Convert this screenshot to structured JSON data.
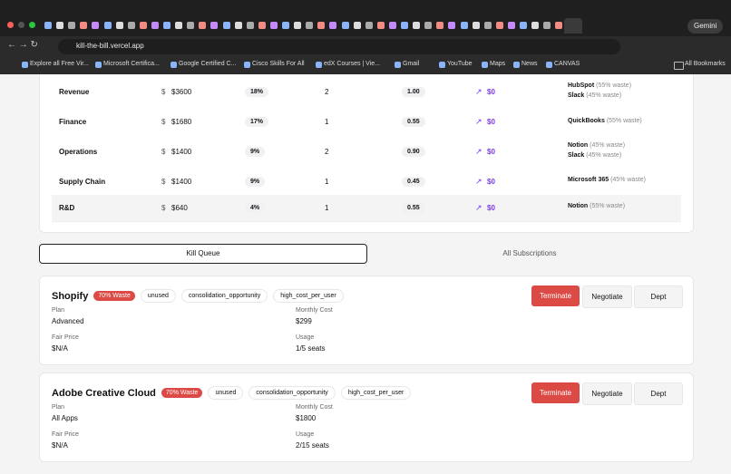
{
  "browser": {
    "url": "kill-the-bill.vercel.app",
    "gemini": "Gemini",
    "bookmarks": [
      "Explore all Free Vir...",
      "Microsoft Certifica...",
      "Google Certified C...",
      "Cisco Skills For All",
      "edX Courses | Vie...",
      "Gmail",
      "YouTube",
      "Maps",
      "News",
      "CANVAS"
    ],
    "all_bookmarks": "All Bookmarks"
  },
  "table": {
    "rows": [
      {
        "department": "Revenue",
        "currency": "$",
        "spend": "$3600",
        "share": "18%",
        "count": "2",
        "score": "1.00",
        "trend": "$0",
        "tools": [
          {
            "name": "HubSpot",
            "waste": "(55% waste)"
          },
          {
            "name": "Slack",
            "waste": "(45% waste)"
          }
        ]
      },
      {
        "department": "Finance",
        "currency": "$",
        "spend": "$1680",
        "share": "17%",
        "count": "1",
        "score": "0.55",
        "trend": "$0",
        "tools": [
          {
            "name": "QuickBooks",
            "waste": "(55% waste)"
          }
        ]
      },
      {
        "department": "Operations",
        "currency": "$",
        "spend": "$1400",
        "share": "9%",
        "count": "2",
        "score": "0.90",
        "trend": "$0",
        "tools": [
          {
            "name": "Notion",
            "waste": "(45% waste)"
          },
          {
            "name": "Slack",
            "waste": "(45% waste)"
          }
        ]
      },
      {
        "department": "Supply Chain",
        "currency": "$",
        "spend": "$1400",
        "share": "9%",
        "count": "1",
        "score": "0.45",
        "trend": "$0",
        "tools": [
          {
            "name": "Microsoft 365",
            "waste": "(45% waste)"
          }
        ]
      },
      {
        "department": "R&D",
        "currency": "$",
        "spend": "$640",
        "share": "4%",
        "count": "1",
        "score": "0.55",
        "trend": "$0",
        "tools": [
          {
            "name": "Notion",
            "waste": "(55% waste)"
          }
        ]
      }
    ]
  },
  "tabs": [
    "Kill Queue",
    "All Subscriptions"
  ],
  "cards": [
    {
      "name": "Shopify",
      "waste": "70% Waste",
      "tags": [
        "unused",
        "consolidation_opportunity",
        "high_cost_per_user"
      ],
      "actions": [
        "Terminate",
        "Negotiate",
        "Dept"
      ],
      "fields": [
        {
          "label": "Plan",
          "value": "Advanced"
        },
        {
          "label": "Monthly Cost",
          "value": "$299"
        },
        {
          "label": "Fair Price",
          "value": "$N/A"
        },
        {
          "label": "Usage",
          "value": "1/5 seats"
        }
      ]
    },
    {
      "name": "Adobe Creative Cloud",
      "waste": "70% Waste",
      "tags": [
        "unused",
        "consolidation_opportunity",
        "high_cost_per_user"
      ],
      "actions": [
        "Terminate",
        "Negotiate",
        "Dept"
      ],
      "fields": [
        {
          "label": "Plan",
          "value": "All Apps"
        },
        {
          "label": "Monthly Cost",
          "value": "$1800"
        },
        {
          "label": "Fair Price",
          "value": "$N/A"
        },
        {
          "label": "Usage",
          "value": "2/15 seats"
        }
      ]
    }
  ]
}
